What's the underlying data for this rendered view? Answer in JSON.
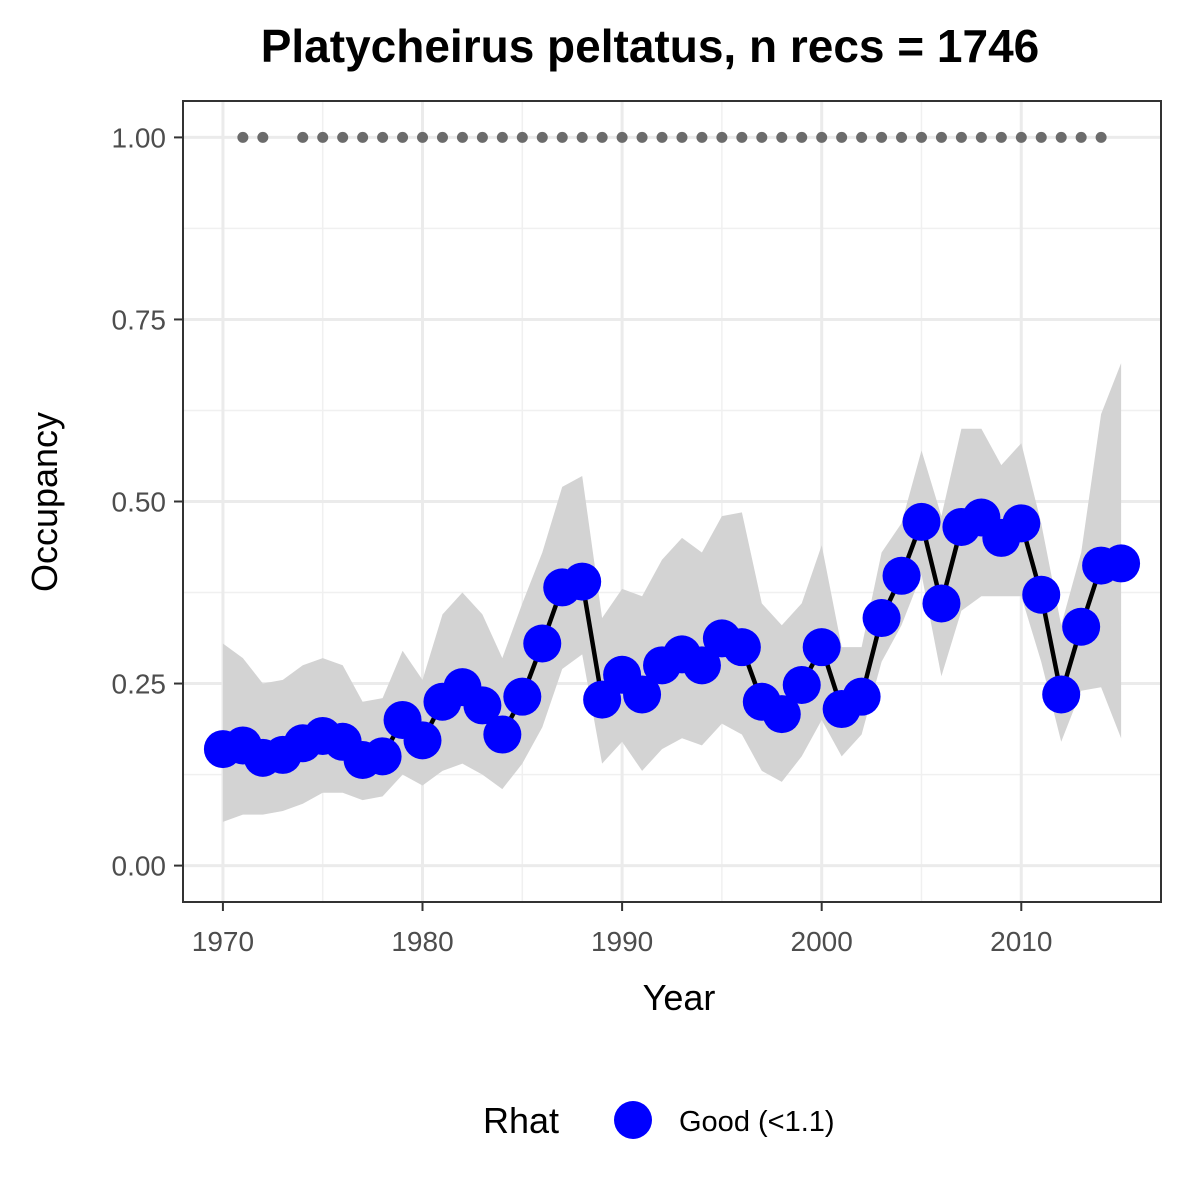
{
  "chart_data": {
    "type": "line",
    "title": "Platycheirus peltatus, n recs = 1746",
    "xlabel": "Year",
    "ylabel": "Occupancy",
    "xlim": [
      1968,
      2017
    ],
    "ylim": [
      -0.05,
      1.05
    ],
    "x_ticks": [
      1970,
      1980,
      1990,
      2000,
      2010
    ],
    "x_tick_labels": [
      "1970",
      "1980",
      "1990",
      "2000",
      "2010"
    ],
    "y_ticks": [
      0,
      0.25,
      0.5,
      0.75,
      1.0
    ],
    "y_tick_labels": [
      "0.00",
      "0.25",
      "0.50",
      "0.75",
      "1.00"
    ],
    "grid": true,
    "legend": {
      "title": "Rhat",
      "position": "bottom",
      "entries": [
        {
          "label": "Good (<1.1)",
          "color": "#0000ff"
        }
      ]
    },
    "colors": {
      "points": "#0000ff",
      "line": "#000000",
      "ribbon": "#d3d3d3",
      "record_dots": "#6b6b6b"
    },
    "series": [
      {
        "x": [
          1970,
          1971,
          1972,
          1973,
          1974,
          1975,
          1976,
          1977,
          1978,
          1979,
          1980,
          1981,
          1982,
          1983,
          1984,
          1985,
          1986,
          1987,
          1988,
          1989,
          1990,
          1991,
          1992,
          1993,
          1994,
          1995,
          1996,
          1997,
          1998,
          1999,
          2000,
          2001,
          2002,
          2003,
          2004,
          2005,
          2006,
          2007,
          2008,
          2009,
          2010,
          2011,
          2012,
          2013,
          2014,
          2015
        ],
        "y": [
          0.16,
          0.165,
          0.148,
          0.152,
          0.168,
          0.178,
          0.17,
          0.145,
          0.15,
          0.2,
          0.172,
          0.225,
          0.245,
          0.22,
          0.18,
          0.232,
          0.305,
          0.382,
          0.39,
          0.228,
          0.262,
          0.235,
          0.275,
          0.29,
          0.275,
          0.312,
          0.3,
          0.225,
          0.208,
          0.248,
          0.3,
          0.215,
          0.232,
          0.34,
          0.398,
          0.472,
          0.36,
          0.465,
          0.478,
          0.45,
          0.47,
          0.372,
          0.235,
          0.328,
          0.412,
          0.415
        ],
        "lower": [
          0.06,
          0.07,
          0.07,
          0.075,
          0.085,
          0.1,
          0.1,
          0.09,
          0.095,
          0.125,
          0.11,
          0.13,
          0.14,
          0.125,
          0.105,
          0.14,
          0.19,
          0.27,
          0.29,
          0.14,
          0.17,
          0.13,
          0.16,
          0.175,
          0.165,
          0.195,
          0.18,
          0.13,
          0.115,
          0.15,
          0.2,
          0.15,
          0.18,
          0.28,
          0.33,
          0.4,
          0.26,
          0.35,
          0.37,
          0.37,
          0.37,
          0.28,
          0.17,
          0.24,
          0.245,
          0.175
        ],
        "upper": [
          0.305,
          0.285,
          0.25,
          0.255,
          0.275,
          0.285,
          0.275,
          0.225,
          0.23,
          0.295,
          0.255,
          0.345,
          0.375,
          0.345,
          0.285,
          0.36,
          0.43,
          0.52,
          0.535,
          0.34,
          0.38,
          0.37,
          0.42,
          0.45,
          0.43,
          0.48,
          0.485,
          0.36,
          0.33,
          0.36,
          0.44,
          0.3,
          0.3,
          0.43,
          0.47,
          0.57,
          0.48,
          0.6,
          0.6,
          0.55,
          0.58,
          0.47,
          0.33,
          0.43,
          0.62,
          0.69
        ]
      }
    ],
    "record_years": [
      1971,
      1972,
      1974,
      1975,
      1976,
      1977,
      1978,
      1979,
      1980,
      1981,
      1982,
      1983,
      1984,
      1985,
      1986,
      1987,
      1988,
      1989,
      1990,
      1991,
      1992,
      1993,
      1994,
      1995,
      1996,
      1997,
      1998,
      1999,
      2000,
      2001,
      2002,
      2003,
      2004,
      2005,
      2006,
      2007,
      2008,
      2009,
      2010,
      2011,
      2012,
      2013,
      2014
    ],
    "record_value": 1.0
  }
}
